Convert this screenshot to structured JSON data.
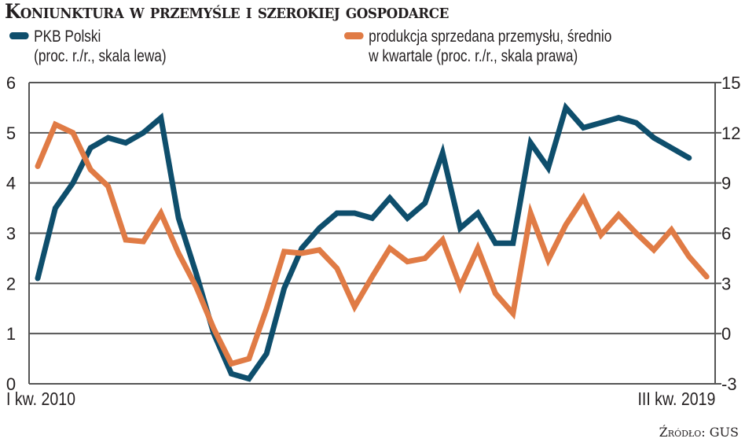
{
  "chart_data": {
    "type": "line",
    "title": "Koniunktura w przemyśle i szerokiej gospodarce",
    "x_start_label": "I kw. 2010",
    "x_end_label": "III kw. 2019",
    "x_unit": "quarter",
    "left_axis": {
      "ylim": [
        0,
        6
      ],
      "ticks": [
        "0",
        "1",
        "2",
        "3",
        "4",
        "5",
        "6"
      ]
    },
    "right_axis": {
      "ylim": [
        -3,
        15
      ],
      "ticks": [
        "-3",
        "0",
        "3",
        "6",
        "9",
        "12",
        "15"
      ]
    },
    "grid": true,
    "series": [
      {
        "name": "PKB Polski",
        "name_line2": "(proc. r./r., skala lewa)",
        "axis": "left",
        "color": "#0e4e6c",
        "values": [
          2.1,
          3.5,
          4.0,
          4.7,
          4.9,
          4.8,
          5.0,
          5.3,
          3.3,
          2.2,
          1.0,
          0.2,
          0.1,
          0.6,
          1.9,
          2.7,
          3.1,
          3.4,
          3.4,
          3.3,
          3.7,
          3.3,
          3.6,
          4.6,
          3.1,
          3.4,
          2.8,
          2.8,
          4.8,
          4.3,
          5.5,
          5.1,
          5.2,
          5.3,
          5.2,
          4.9,
          4.7,
          4.5
        ]
      },
      {
        "name": "produkcja sprzedana przemysłu, średnio",
        "name_line2": "w kwartale (proc. r./r., skala prawa)",
        "axis": "right",
        "color": "#e07b45",
        "values": [
          10.0,
          12.5,
          12.0,
          9.8,
          8.8,
          5.6,
          5.5,
          7.2,
          4.8,
          2.8,
          0.3,
          -1.8,
          -1.5,
          1.5,
          4.9,
          4.8,
          5.0,
          3.9,
          1.6,
          3.4,
          5.1,
          4.3,
          4.5,
          5.6,
          2.8,
          5.1,
          2.4,
          1.2,
          7.2,
          4.4,
          6.5,
          8.1,
          5.9,
          7.1,
          6.0,
          5.0,
          6.2,
          4.6,
          3.4
        ]
      }
    ],
    "source": "Źródło: GUS"
  }
}
